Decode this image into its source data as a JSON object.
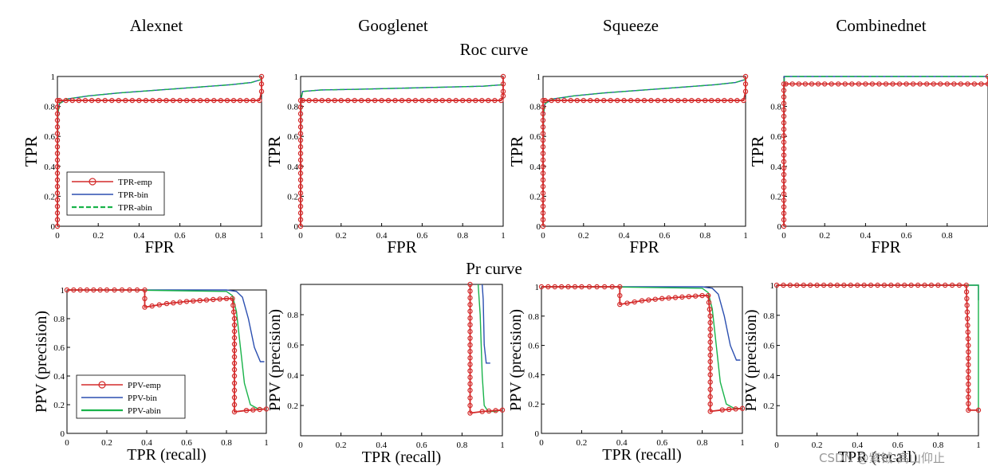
{
  "column_titles": [
    "Alexnet",
    "Googlenet",
    "Squeeze",
    "Combinednet"
  ],
  "row_titles": [
    "Roc curve",
    "Pr curve"
  ],
  "colors": {
    "emp": "#d42a2a",
    "bin": "#2b4fb0",
    "abin": "#19b34a"
  },
  "watermark": "CSDN @紫钺-高山仰止",
  "chart_data": [
    {
      "type": "line",
      "group": "roc",
      "title": "Alexnet",
      "xlabel": "FPR",
      "ylabel": "TPR",
      "xlim": [
        0,
        1
      ],
      "ylim": [
        0,
        1
      ],
      "xticks": [
        "0",
        "0.2",
        "0.4",
        "0.6",
        "0.8",
        "1"
      ],
      "yticks": [
        "0",
        "0.2",
        "0.4",
        "0.6",
        "0.8",
        "1"
      ],
      "legend": {
        "placement": "bottom-left",
        "entries": [
          "TPR-emp",
          "TPR-bin",
          "TPR-abin"
        ]
      },
      "series": [
        {
          "name": "TPR-emp",
          "x": [
            0,
            0,
            0.01,
            0.2,
            0.5,
            0.8,
            0.99,
            1,
            1,
            1
          ],
          "y": [
            0,
            0.84,
            0.84,
            0.84,
            0.84,
            0.84,
            0.84,
            0.9,
            0.95,
            1
          ]
        },
        {
          "name": "TPR-bin",
          "x": [
            0,
            0.002,
            0.01,
            0.05,
            0.15,
            0.3,
            0.5,
            0.7,
            0.85,
            0.95,
            1
          ],
          "y": [
            0,
            0.75,
            0.82,
            0.85,
            0.87,
            0.89,
            0.91,
            0.93,
            0.945,
            0.96,
            0.98
          ]
        },
        {
          "name": "TPR-abin",
          "x": [
            0,
            0.002,
            0.01,
            0.05,
            0.15,
            0.3,
            0.5,
            0.7,
            0.85,
            0.95,
            1
          ],
          "y": [
            0,
            0.75,
            0.82,
            0.85,
            0.87,
            0.89,
            0.91,
            0.93,
            0.945,
            0.96,
            0.98
          ]
        }
      ]
    },
    {
      "type": "line",
      "group": "roc",
      "title": "Googlenet",
      "xlabel": "FPR",
      "ylabel": "TPR",
      "xlim": [
        0,
        1
      ],
      "ylim": [
        0,
        1
      ],
      "xticks": [
        "0",
        "0.2",
        "0.4",
        "0.6",
        "0.8",
        "1"
      ],
      "yticks": [
        "0",
        "0.2",
        "0.4",
        "0.6",
        "0.8",
        "1"
      ],
      "series": [
        {
          "name": "TPR-emp",
          "x": [
            0,
            0,
            0.01,
            0.2,
            0.5,
            0.8,
            0.99,
            1,
            1,
            1
          ],
          "y": [
            0,
            0.84,
            0.84,
            0.84,
            0.84,
            0.84,
            0.84,
            0.87,
            0.9,
            1
          ]
        },
        {
          "name": "TPR-bin",
          "x": [
            0,
            0.002,
            0.01,
            0.1,
            0.3,
            0.6,
            0.9,
            1
          ],
          "y": [
            0,
            0.85,
            0.9,
            0.91,
            0.915,
            0.925,
            0.935,
            0.945
          ]
        },
        {
          "name": "TPR-abin",
          "x": [
            0,
            0.002,
            0.01,
            0.1,
            0.3,
            0.6,
            0.9,
            1
          ],
          "y": [
            0,
            0.85,
            0.9,
            0.91,
            0.915,
            0.925,
            0.935,
            0.945
          ]
        }
      ]
    },
    {
      "type": "line",
      "group": "roc",
      "title": "Squeeze",
      "xlabel": "FPR",
      "ylabel": "TPR",
      "xlim": [
        0,
        1
      ],
      "ylim": [
        0,
        1
      ],
      "xticks": [
        "0",
        "0.2",
        "0.4",
        "0.6",
        "0.8",
        "1"
      ],
      "yticks": [
        "0",
        "0.2",
        "0.4",
        "0.6",
        "0.8",
        "1"
      ],
      "series": [
        {
          "name": "TPR-emp",
          "x": [
            0,
            0,
            0.01,
            0.2,
            0.5,
            0.8,
            0.99,
            1,
            1,
            1
          ],
          "y": [
            0,
            0.84,
            0.84,
            0.84,
            0.84,
            0.84,
            0.84,
            0.9,
            0.95,
            1
          ]
        },
        {
          "name": "TPR-bin",
          "x": [
            0,
            0.002,
            0.01,
            0.05,
            0.15,
            0.3,
            0.5,
            0.7,
            0.85,
            0.95,
            1
          ],
          "y": [
            0,
            0.75,
            0.82,
            0.85,
            0.87,
            0.89,
            0.91,
            0.93,
            0.945,
            0.96,
            0.98
          ]
        },
        {
          "name": "TPR-abin",
          "x": [
            0,
            0.002,
            0.01,
            0.05,
            0.15,
            0.3,
            0.5,
            0.7,
            0.85,
            0.95,
            1
          ],
          "y": [
            0,
            0.75,
            0.82,
            0.85,
            0.87,
            0.89,
            0.91,
            0.93,
            0.945,
            0.96,
            0.98
          ]
        }
      ]
    },
    {
      "type": "line",
      "group": "roc",
      "title": "Combinednet",
      "xlabel": "FPR",
      "ylabel": "TPR",
      "xlim": [
        0,
        1
      ],
      "ylim": [
        0,
        1
      ],
      "xticks": [
        "0",
        "0.2",
        "0.4",
        "0.6",
        "0.8"
      ],
      "yticks": [
        "0",
        "0.2",
        "0.4",
        "0.6",
        "0.8"
      ],
      "series": [
        {
          "name": "TPR-emp",
          "x": [
            0,
            0,
            0.01,
            0.2,
            0.5,
            0.8,
            1,
            1
          ],
          "y": [
            0,
            0.95,
            0.95,
            0.95,
            0.95,
            0.95,
            0.95,
            1
          ]
        },
        {
          "name": "TPR-bin",
          "x": [
            0,
            0.002,
            0.3,
            0.6,
            1
          ],
          "y": [
            0,
            1,
            1,
            1,
            1
          ]
        },
        {
          "name": "TPR-abin",
          "x": [
            0,
            0.002,
            0.3,
            0.6,
            1
          ],
          "y": [
            0,
            1,
            1,
            1,
            1
          ]
        }
      ]
    },
    {
      "type": "line",
      "group": "pr",
      "title": "Alexnet",
      "xlabel": "TPR (recall)",
      "ylabel": "PPV (precision)",
      "xlim": [
        0,
        1
      ],
      "ylim": [
        0,
        1
      ],
      "xticks": [
        "0",
        "0.2",
        "0.4",
        "0.6",
        "0.8",
        "1"
      ],
      "yticks": [
        "0",
        "0.2",
        "0.4",
        "0.6",
        "0.8",
        "1"
      ],
      "legend": {
        "placement": "bottom-left",
        "entries": [
          "PPV-emp",
          "PPV-bin",
          "PPV-abin"
        ]
      },
      "series": [
        {
          "name": "PPV-emp",
          "x": [
            0,
            0.1,
            0.2,
            0.39,
            0.39,
            0.5,
            0.6,
            0.7,
            0.8,
            0.83,
            0.84,
            0.84,
            0.84,
            0.9,
            1
          ],
          "y": [
            1,
            1,
            1,
            1,
            0.88,
            0.905,
            0.92,
            0.93,
            0.94,
            0.94,
            0.8,
            0.4,
            0.15,
            0.16,
            0.17
          ]
        },
        {
          "name": "PPV-bin",
          "x": [
            0,
            0.3,
            0.8,
            0.85,
            0.88,
            0.91,
            0.94,
            0.97,
            0.99
          ],
          "y": [
            1,
            1,
            1,
            0.99,
            0.95,
            0.8,
            0.6,
            0.5,
            0.5
          ]
        },
        {
          "name": "PPV-abin",
          "x": [
            0,
            0.3,
            0.8,
            0.83,
            0.85,
            0.87,
            0.89,
            0.92,
            0.96,
            1
          ],
          "y": [
            1,
            1,
            0.99,
            0.96,
            0.85,
            0.6,
            0.35,
            0.2,
            0.17,
            0.17
          ]
        }
      ]
    },
    {
      "type": "line",
      "group": "pr",
      "title": "Googlenet",
      "xlabel": "TPR (recall)",
      "ylabel": "PPV (precision)",
      "xlim": [
        0,
        1
      ],
      "ylim": [
        0,
        1
      ],
      "xticks": [
        "0",
        "0.2",
        "0.4",
        "0.6",
        "0.8",
        "1"
      ],
      "yticks": [
        "0.2",
        "0.4",
        "0.6",
        "0.8"
      ],
      "series": [
        {
          "name": "PPV-emp",
          "x": [
            0.84,
            0.84,
            0.84,
            0.84,
            0.9,
            1
          ],
          "y": [
            1,
            0.6,
            0.3,
            0.15,
            0.16,
            0.17
          ]
        },
        {
          "name": "PPV-bin",
          "x": [
            0.9,
            0.905,
            0.91,
            0.92,
            0.94
          ],
          "y": [
            1,
            0.9,
            0.6,
            0.48,
            0.48
          ]
        },
        {
          "name": "PPV-abin",
          "x": [
            0.88,
            0.89,
            0.9,
            0.91,
            0.93,
            0.96,
            1
          ],
          "y": [
            1,
            0.8,
            0.4,
            0.2,
            0.16,
            0.16,
            0.17
          ]
        }
      ]
    },
    {
      "type": "line",
      "group": "pr",
      "title": "Squeeze",
      "xlabel": "TPR (recall)",
      "ylabel": "PPV (precision)",
      "xlim": [
        0,
        1
      ],
      "ylim": [
        0,
        1
      ],
      "xticks": [
        "0",
        "0.2",
        "0.4",
        "0.6",
        "0.8",
        "1"
      ],
      "yticks": [
        "0",
        "0.2",
        "0.4",
        "0.6",
        "0.8",
        "1"
      ],
      "series": [
        {
          "name": "PPV-emp",
          "x": [
            0,
            0.1,
            0.2,
            0.39,
            0.39,
            0.5,
            0.6,
            0.7,
            0.8,
            0.83,
            0.84,
            0.84,
            0.84,
            0.9,
            1
          ],
          "y": [
            1,
            1,
            1,
            1,
            0.88,
            0.905,
            0.92,
            0.93,
            0.94,
            0.94,
            0.8,
            0.4,
            0.15,
            0.16,
            0.17
          ]
        },
        {
          "name": "PPV-bin",
          "x": [
            0,
            0.3,
            0.8,
            0.85,
            0.88,
            0.91,
            0.94,
            0.97,
            0.99
          ],
          "y": [
            1,
            1,
            1,
            0.99,
            0.95,
            0.8,
            0.6,
            0.5,
            0.5
          ]
        },
        {
          "name": "PPV-abin",
          "x": [
            0,
            0.3,
            0.8,
            0.83,
            0.85,
            0.87,
            0.89,
            0.92,
            0.96,
            1
          ],
          "y": [
            1,
            1,
            0.99,
            0.96,
            0.85,
            0.6,
            0.35,
            0.2,
            0.17,
            0.17
          ]
        }
      ]
    },
    {
      "type": "line",
      "group": "pr",
      "title": "Combinednet",
      "xlabel": "TPR (recall)",
      "ylabel": "PPV (precision)",
      "xlim": [
        0,
        1
      ],
      "ylim": [
        0,
        1
      ],
      "xticks": [
        "0",
        "0.2",
        "0.4",
        "0.6",
        "0.8",
        "1"
      ],
      "yticks": [
        "0.2",
        "0.4",
        "0.6",
        "0.8",
        "1"
      ],
      "series": [
        {
          "name": "PPV-emp",
          "x": [
            0,
            0.2,
            0.4,
            0.6,
            0.8,
            0.94,
            0.95,
            0.95,
            0.95,
            1
          ],
          "y": [
            1,
            1,
            1,
            1,
            1,
            1,
            0.6,
            0.3,
            0.17,
            0.17
          ]
        },
        {
          "name": "PPV-bin",
          "x": [
            0,
            0.3,
            0.6,
            1,
            1
          ],
          "y": [
            1,
            1,
            1,
            1,
            0.9
          ]
        },
        {
          "name": "PPV-abin",
          "x": [
            0,
            0.3,
            0.6,
            0.95,
            1,
            1,
            1
          ],
          "y": [
            1,
            1,
            1,
            1,
            1,
            0.4,
            0.18
          ]
        }
      ]
    }
  ]
}
